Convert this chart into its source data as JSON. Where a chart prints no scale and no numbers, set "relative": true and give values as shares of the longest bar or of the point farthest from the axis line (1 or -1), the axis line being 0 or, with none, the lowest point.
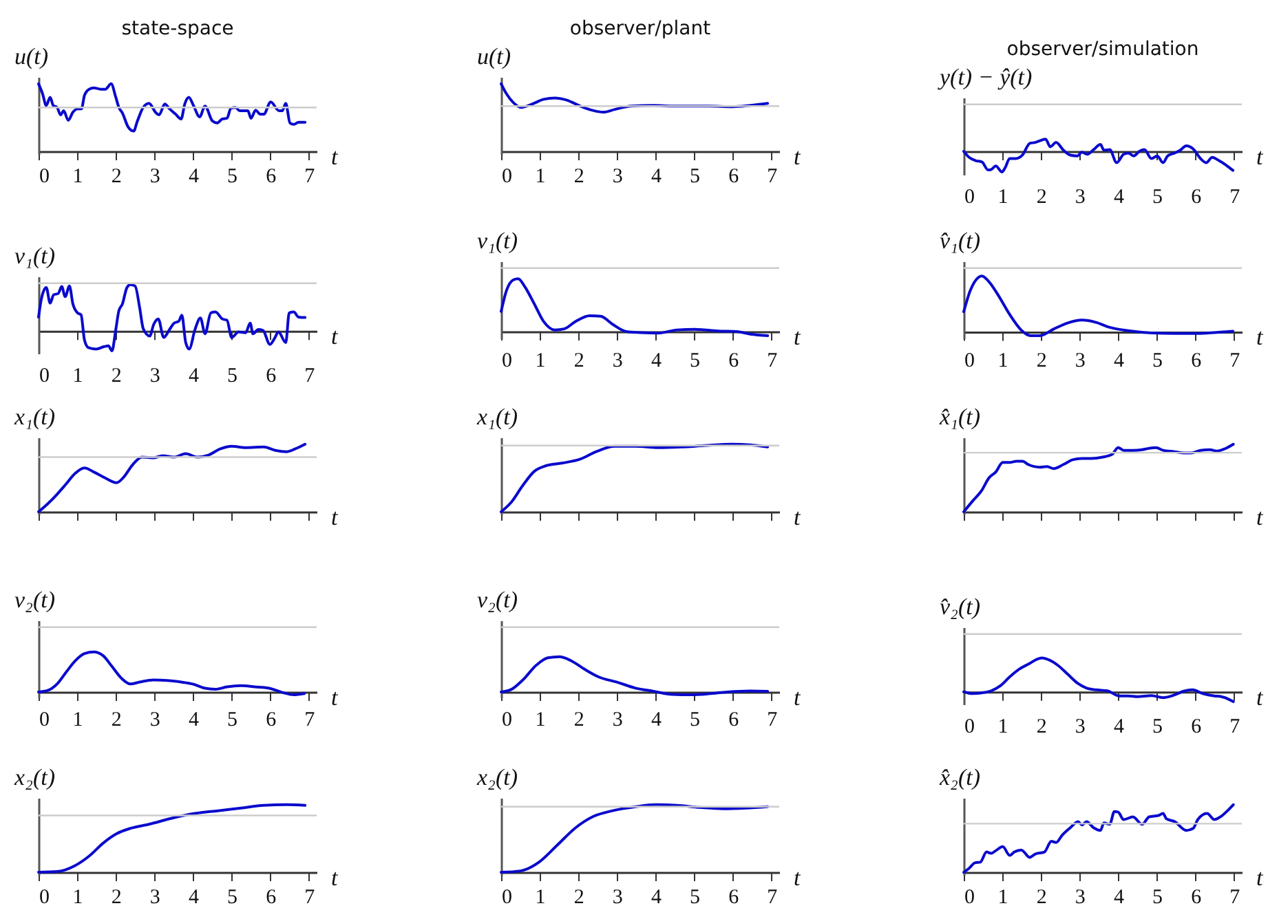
{
  "chart_data": [
    {
      "type": "line",
      "title": "state-space",
      "ylabel": "u(t)",
      "xlabel": "t",
      "relative": true,
      "tick_labels": "x",
      "color": "#0a0acd",
      "xlim": [
        0,
        7.2
      ],
      "xticks": [
        0,
        1,
        2,
        3,
        4,
        5,
        6,
        7
      ],
      "ref_lines": [
        {
          "axis": "y",
          "value": 0.65,
          "color": "#cccccc"
        }
      ],
      "x": [
        0,
        0.1,
        0.2,
        0.3,
        0.38,
        0.48,
        0.57,
        0.65,
        0.77,
        0.89,
        1.01,
        1.11,
        1.19,
        1.31,
        1.43,
        1.61,
        1.73,
        1.88,
        2.0,
        2.08,
        2.17,
        2.32,
        2.46,
        2.56,
        2.71,
        2.86,
        3.04,
        3.12,
        3.27,
        3.39,
        3.55,
        3.69,
        3.79,
        3.89,
        4.01,
        4.17,
        4.31,
        4.5,
        4.62,
        4.76,
        4.88,
        4.98,
        5.1,
        5.21,
        5.42,
        5.5,
        5.62,
        5.74,
        5.83,
        6.01,
        6.23,
        6.31,
        6.4,
        6.51,
        6.61,
        6.73,
        6.9
      ],
      "values": [
        1.0,
        0.86,
        0.68,
        0.8,
        0.68,
        0.65,
        0.54,
        0.6,
        0.46,
        0.58,
        0.63,
        0.63,
        0.83,
        0.92,
        0.94,
        0.92,
        0.92,
        1.0,
        0.8,
        0.65,
        0.57,
        0.36,
        0.3,
        0.45,
        0.65,
        0.71,
        0.57,
        0.54,
        0.7,
        0.63,
        0.55,
        0.48,
        0.71,
        0.8,
        0.68,
        0.51,
        0.67,
        0.45,
        0.42,
        0.48,
        0.49,
        0.64,
        0.65,
        0.6,
        0.6,
        0.49,
        0.61,
        0.55,
        0.55,
        0.73,
        0.6,
        0.6,
        0.71,
        0.42,
        0.4,
        0.43,
        0.43
      ]
    },
    {
      "type": "line",
      "title": "observer/plant",
      "ylabel": "u(t)",
      "xlabel": "t",
      "relative": true,
      "tick_labels": "x",
      "color": "#0a0acd",
      "xlim": [
        0,
        7.2
      ],
      "xticks": [
        0,
        1,
        2,
        3,
        4,
        5,
        6,
        7
      ],
      "ref_lines": [
        {
          "axis": "y",
          "value": 0.67,
          "color": "#cccccc"
        }
      ],
      "x": [
        0,
        0.14,
        0.32,
        0.52,
        0.8,
        1.1,
        1.39,
        1.69,
        2.05,
        2.35,
        2.64,
        2.94,
        3.36,
        3.95,
        4.43,
        4.9,
        5.38,
        5.98,
        6.45,
        6.9
      ],
      "values": [
        1.0,
        0.85,
        0.72,
        0.65,
        0.7,
        0.77,
        0.79,
        0.76,
        0.67,
        0.61,
        0.58,
        0.62,
        0.67,
        0.68,
        0.67,
        0.67,
        0.67,
        0.66,
        0.68,
        0.71
      ]
    },
    {
      "type": "line",
      "title": "observer/simulation",
      "ylabel": "y(t) − ŷ(t)",
      "xlabel": "t",
      "relative": true,
      "tick_labels": "x",
      "color": "#0a0acd",
      "xlim": [
        0,
        7.2
      ],
      "xticks": [
        0,
        1,
        2,
        3,
        4,
        5,
        6,
        7
      ],
      "ref_lines": [
        {
          "axis": "y",
          "value": 2.27,
          "color": "#cccccc"
        }
      ],
      "x": [
        0,
        0.14,
        0.31,
        0.47,
        0.63,
        0.71,
        0.83,
        0.99,
        1.07,
        1.19,
        1.35,
        1.52,
        1.71,
        1.85,
        2.0,
        2.12,
        2.24,
        2.39,
        2.58,
        2.76,
        2.94,
        3.06,
        3.2,
        3.36,
        3.54,
        3.63,
        3.78,
        3.96,
        4.14,
        4.26,
        4.4,
        4.56,
        4.68,
        4.86,
        5.01,
        5.16,
        5.28,
        5.46,
        5.61,
        5.76,
        5.94,
        6.13,
        6.28,
        6.43,
        6.61,
        6.81,
        6.97
      ],
      "values": [
        0,
        -0.29,
        -0.45,
        -0.51,
        -0.9,
        -0.88,
        -0.71,
        -1.0,
        -0.8,
        -0.35,
        -0.35,
        -0.18,
        0.39,
        0.43,
        0.53,
        0.59,
        0.22,
        0.43,
        0.06,
        -0.18,
        -0.22,
        -0.04,
        -0.14,
        0.08,
        0.33,
        0.06,
        0.08,
        -0.55,
        -0.14,
        -0.08,
        -0.22,
        0.02,
        0.08,
        -0.35,
        -0.22,
        -0.55,
        -0.22,
        -0.08,
        0.06,
        0.27,
        0.12,
        -0.35,
        -0.55,
        -0.29,
        -0.45,
        -0.69,
        -0.92
      ]
    },
    {
      "type": "line",
      "ylabel": "v₁(t)",
      "xlabel": "t",
      "relative": true,
      "tick_labels": "x",
      "color": "#0a0acd",
      "xlim": [
        0,
        7.2
      ],
      "xticks": [
        0,
        1,
        2,
        3,
        4,
        5,
        6,
        7
      ],
      "ref_lines": [
        {
          "axis": "y",
          "value": 1.03,
          "color": "#cccccc"
        }
      ],
      "x": [
        0,
        0.08,
        0.2,
        0.3,
        0.39,
        0.51,
        0.6,
        0.69,
        0.8,
        0.89,
        1.01,
        1.1,
        1.19,
        1.29,
        1.49,
        1.69,
        1.81,
        1.9,
        2.0,
        2.08,
        2.17,
        2.29,
        2.38,
        2.5,
        2.62,
        2.71,
        2.88,
        2.98,
        3.1,
        3.24,
        3.39,
        3.51,
        3.63,
        3.71,
        3.81,
        3.9,
        4.05,
        4.19,
        4.31,
        4.46,
        4.58,
        4.76,
        4.88,
        5.0,
        5.18,
        5.36,
        5.48,
        5.55,
        5.69,
        5.81,
        5.99,
        6.11,
        6.21,
        6.4,
        6.49,
        6.61,
        6.73,
        6.9
      ],
      "values": [
        0.3,
        0.72,
        0.94,
        0.6,
        0.78,
        0.81,
        0.96,
        0.74,
        0.97,
        0.58,
        0.39,
        0.35,
        -0.2,
        -0.36,
        -0.39,
        -0.34,
        -0.32,
        -0.43,
        0.03,
        0.44,
        0.58,
        0.94,
        1.0,
        0.97,
        0.49,
        0.05,
        -0.11,
        0.14,
        0.26,
        -0.14,
        0.03,
        0.17,
        0.21,
        0.34,
        -0.25,
        -0.39,
        0.03,
        0.28,
        -0.06,
        0.39,
        0.41,
        0.26,
        0.23,
        -0.14,
        -0.02,
        -0.04,
        0.17,
        -0.06,
        0.03,
        0.01,
        -0.29,
        -0.16,
        -0.02,
        -0.25,
        0.39,
        0.41,
        0.3,
        0.29
      ]
    },
    {
      "type": "line",
      "ylabel": "v₁(t)",
      "xlabel": "t",
      "relative": true,
      "tick_labels": "x",
      "color": "#0a0acd",
      "xlim": [
        0,
        7.2
      ],
      "xticks": [
        0,
        1,
        2,
        3,
        4,
        5,
        6,
        7
      ],
      "ref_lines": [
        {
          "axis": "y",
          "value": 1.2,
          "color": "#cccccc"
        }
      ],
      "x": [
        0,
        0.14,
        0.32,
        0.44,
        0.62,
        0.86,
        1.1,
        1.39,
        1.63,
        1.93,
        2.29,
        2.58,
        2.88,
        3.24,
        3.6,
        4.07,
        4.55,
        5.02,
        5.62,
        6.1,
        6.45,
        6.9
      ],
      "values": [
        0.38,
        0.78,
        0.98,
        1.0,
        0.84,
        0.52,
        0.19,
        0.03,
        0.05,
        0.19,
        0.3,
        0.29,
        0.14,
        0.0,
        -0.02,
        -0.03,
        0.03,
        0.04,
        0.01,
        0.0,
        -0.05,
        -0.08
      ]
    },
    {
      "type": "line",
      "ylabel": "v̂₁(t)",
      "xlabel": "t",
      "relative": true,
      "tick_labels": "x",
      "color": "#0a0acd",
      "xlim": [
        0,
        7.2
      ],
      "xticks": [
        0,
        1,
        2,
        3,
        4,
        5,
        6,
        7
      ],
      "ref_lines": [
        {
          "axis": "y",
          "value": 1.14,
          "color": "#cccccc"
        }
      ],
      "x": [
        0,
        0.17,
        0.39,
        0.47,
        0.65,
        0.89,
        1.19,
        1.49,
        1.73,
        1.97,
        2.33,
        2.7,
        3.06,
        3.42,
        3.78,
        4.26,
        4.86,
        5.46,
        6.06,
        6.55,
        6.97
      ],
      "values": [
        0.36,
        0.74,
        0.98,
        1.0,
        0.9,
        0.66,
        0.31,
        0.03,
        -0.07,
        -0.07,
        0.05,
        0.16,
        0.21,
        0.17,
        0.08,
        0.02,
        -0.02,
        -0.03,
        -0.03,
        -0.01,
        0.01
      ]
    },
    {
      "type": "line",
      "ylabel": "x₁(t)",
      "xlabel": "t",
      "relative": true,
      "tick_labels": false,
      "color": "#0a0acd",
      "xlim": [
        0,
        7.2
      ],
      "xticks": [
        0,
        1,
        2,
        3,
        4,
        5,
        6,
        7
      ],
      "ref_lines": [
        {
          "axis": "y",
          "value": 0.81,
          "color": "#cccccc"
        }
      ],
      "x": [
        0,
        0.24,
        0.48,
        0.71,
        0.95,
        1.19,
        1.43,
        1.73,
        2.02,
        2.2,
        2.44,
        2.68,
        2.98,
        3.21,
        3.51,
        3.81,
        4.11,
        4.4,
        4.7,
        5.0,
        5.36,
        5.83,
        6.13,
        6.43,
        6.64,
        6.9
      ],
      "values": [
        0,
        0.12,
        0.26,
        0.41,
        0.57,
        0.65,
        0.59,
        0.5,
        0.43,
        0.51,
        0.7,
        0.81,
        0.8,
        0.83,
        0.81,
        0.86,
        0.81,
        0.84,
        0.93,
        0.97,
        0.95,
        0.96,
        0.91,
        0.89,
        0.93,
        1.0
      ]
    },
    {
      "type": "line",
      "ylabel": "x₁(t)",
      "xlabel": "t",
      "relative": true,
      "tick_labels": false,
      "color": "#0a0acd",
      "xlim": [
        0,
        7.2
      ],
      "xticks": [
        0,
        1,
        2,
        3,
        4,
        5,
        6,
        7
      ],
      "ref_lines": [
        {
          "axis": "y",
          "value": 0.98,
          "color": "#cccccc"
        }
      ],
      "x": [
        0,
        0.26,
        0.56,
        0.86,
        1.15,
        1.57,
        2.05,
        2.46,
        2.94,
        3.48,
        4.07,
        4.67,
        5.26,
        5.98,
        6.45,
        6.9
      ],
      "values": [
        0,
        0.14,
        0.39,
        0.6,
        0.68,
        0.72,
        0.78,
        0.89,
        0.97,
        0.97,
        0.95,
        0.96,
        0.98,
        1.0,
        0.99,
        0.96
      ]
    },
    {
      "type": "line",
      "ylabel": "x̂₁(t)",
      "xlabel": "t",
      "relative": true,
      "tick_labels": false,
      "color": "#0a0acd",
      "xlim": [
        0,
        7.2
      ],
      "xticks": [
        0,
        1,
        2,
        3,
        4,
        5,
        6,
        7
      ],
      "ref_lines": [
        {
          "axis": "y",
          "value": 0.875,
          "color": "#cccccc"
        }
      ],
      "x": [
        0,
        0.23,
        0.47,
        0.65,
        0.83,
        1.01,
        1.19,
        1.37,
        1.52,
        1.67,
        1.97,
        2.15,
        2.33,
        2.58,
        2.82,
        3.06,
        3.3,
        3.6,
        3.84,
        4.0,
        4.14,
        4.38,
        4.62,
        4.8,
        4.98,
        5.16,
        5.46,
        5.7,
        5.88,
        6.13,
        6.37,
        6.55,
        6.79,
        6.98
      ],
      "values": [
        0,
        0.16,
        0.32,
        0.5,
        0.59,
        0.73,
        0.73,
        0.75,
        0.75,
        0.7,
        0.66,
        0.67,
        0.64,
        0.7,
        0.77,
        0.79,
        0.79,
        0.81,
        0.85,
        0.95,
        0.91,
        0.91,
        0.92,
        0.94,
        0.95,
        0.91,
        0.89,
        0.87,
        0.87,
        0.91,
        0.92,
        0.9,
        0.94,
        1.0
      ]
    },
    {
      "type": "line",
      "ylabel": "v₂(t)",
      "xlabel": "t",
      "relative": true,
      "tick_labels": "x",
      "color": "#0a0acd",
      "xlim": [
        0,
        7.2
      ],
      "xticks": [
        0,
        1,
        2,
        3,
        4,
        5,
        6,
        7
      ],
      "ref_lines": [
        {
          "axis": "y",
          "value": 1.62,
          "color": "#cccccc"
        }
      ],
      "x": [
        0,
        0.24,
        0.48,
        0.71,
        0.95,
        1.19,
        1.43,
        1.67,
        1.9,
        2.14,
        2.38,
        2.62,
        2.98,
        3.33,
        3.69,
        3.99,
        4.29,
        4.58,
        4.88,
        5.24,
        5.6,
        5.95,
        6.31,
        6.61,
        6.88
      ],
      "values": [
        0,
        0.04,
        0.2,
        0.49,
        0.78,
        0.96,
        1.0,
        0.91,
        0.64,
        0.35,
        0.2,
        0.25,
        0.3,
        0.29,
        0.25,
        0.2,
        0.1,
        0.07,
        0.13,
        0.16,
        0.13,
        0.1,
        -0.01,
        -0.07,
        -0.04
      ]
    },
    {
      "type": "line",
      "ylabel": "v₂(t)",
      "xlabel": "t",
      "relative": true,
      "tick_labels": "x",
      "color": "#0a0acd",
      "xlim": [
        0,
        7.2
      ],
      "xticks": [
        0,
        1,
        2,
        3,
        4,
        5,
        6,
        7
      ],
      "ref_lines": [
        {
          "axis": "y",
          "value": 1.84,
          "color": "#cccccc"
        }
      ],
      "x": [
        0,
        0.26,
        0.56,
        0.92,
        1.21,
        1.51,
        1.81,
        2.17,
        2.52,
        3.0,
        3.48,
        3.95,
        4.43,
        4.9,
        5.38,
        5.86,
        6.45,
        6.9
      ],
      "values": [
        0,
        0.07,
        0.34,
        0.77,
        0.97,
        1.0,
        0.89,
        0.64,
        0.43,
        0.28,
        0.11,
        0.02,
        -0.07,
        -0.08,
        -0.05,
        0.0,
        0.03,
        0.02
      ]
    },
    {
      "type": "line",
      "ylabel": "v̂₂(t)",
      "xlabel": "t",
      "relative": true,
      "tick_labels": "x",
      "color": "#0a0acd",
      "xlim": [
        0,
        7.2
      ],
      "xticks": [
        0,
        1,
        2,
        3,
        4,
        5,
        6,
        7
      ],
      "ref_lines": [
        {
          "axis": "y",
          "value": 1.7,
          "color": "#cccccc"
        }
      ],
      "x": [
        0,
        0.23,
        0.47,
        0.71,
        0.95,
        1.19,
        1.44,
        1.68,
        1.92,
        2.03,
        2.21,
        2.45,
        2.69,
        2.94,
        3.18,
        3.42,
        3.72,
        4.02,
        4.26,
        4.5,
        4.86,
        5.16,
        5.46,
        5.7,
        5.92,
        6.19,
        6.49,
        6.67,
        6.98
      ],
      "values": [
        0,
        -0.05,
        -0.03,
        0.03,
        0.18,
        0.44,
        0.67,
        0.82,
        0.97,
        1.0,
        0.94,
        0.77,
        0.52,
        0.26,
        0.11,
        0.06,
        0.03,
        -0.12,
        -0.12,
        -0.14,
        -0.11,
        -0.17,
        -0.09,
        0.02,
        0.06,
        -0.05,
        -0.12,
        -0.14,
        -0.29
      ]
    },
    {
      "type": "line",
      "ylabel": "x₂(t)",
      "xlabel": "t",
      "relative": true,
      "tick_labels": "x",
      "color": "#0a0acd",
      "xlim": [
        0,
        7.2
      ],
      "xticks": [
        0,
        1,
        2,
        3,
        4,
        5,
        6,
        7
      ],
      "ref_lines": [
        {
          "axis": "y",
          "value": 0.84,
          "color": "#cccccc"
        }
      ],
      "x": [
        0,
        0.48,
        0.95,
        1.31,
        1.67,
        2.02,
        2.38,
        2.86,
        3.45,
        4.05,
        4.64,
        5.24,
        5.83,
        6.43,
        6.9
      ],
      "values": [
        0,
        0.01,
        0.1,
        0.24,
        0.43,
        0.57,
        0.65,
        0.71,
        0.8,
        0.87,
        0.91,
        0.95,
        0.99,
        1.0,
        0.99
      ]
    },
    {
      "type": "line",
      "ylabel": "x₂(t)",
      "xlabel": "t",
      "relative": true,
      "tick_labels": "x",
      "color": "#0a0acd",
      "xlim": [
        0,
        7.2
      ],
      "xticks": [
        0,
        1,
        2,
        3,
        4,
        5,
        6,
        7
      ],
      "ref_lines": [
        {
          "axis": "y",
          "value": 0.97,
          "color": "#cccccc"
        }
      ],
      "x": [
        0,
        0.5,
        0.98,
        1.45,
        1.93,
        2.4,
        2.88,
        3.48,
        4.01,
        4.55,
        5.14,
        5.74,
        6.33,
        6.9
      ],
      "values": [
        0,
        0.02,
        0.15,
        0.4,
        0.66,
        0.83,
        0.91,
        0.97,
        1.0,
        0.99,
        0.96,
        0.94,
        0.95,
        0.97
      ]
    },
    {
      "type": "line",
      "ylabel": "x̂₂(t)",
      "xlabel": "t",
      "relative": true,
      "tick_labels": "x",
      "color": "#0a0acd",
      "xlim": [
        0,
        7.2
      ],
      "xticks": [
        0,
        1,
        2,
        3,
        4,
        5,
        6,
        7
      ],
      "ref_lines": [
        {
          "axis": "y",
          "value": 0.72,
          "color": "#cccccc"
        }
      ],
      "x": [
        0,
        0.14,
        0.29,
        0.43,
        0.59,
        0.71,
        0.83,
        1.01,
        1.19,
        1.31,
        1.49,
        1.71,
        1.85,
        2.09,
        2.27,
        2.39,
        2.55,
        2.76,
        2.96,
        3.06,
        3.18,
        3.36,
        3.54,
        3.63,
        3.78,
        3.9,
        4.0,
        4.14,
        4.38,
        4.62,
        4.8,
        5.04,
        5.16,
        5.25,
        5.46,
        5.76,
        5.94,
        6.06,
        6.3,
        6.49,
        6.67,
        6.81,
        6.98
      ],
      "values": [
        0,
        0.06,
        0.14,
        0.15,
        0.3,
        0.28,
        0.32,
        0.38,
        0.25,
        0.3,
        0.33,
        0.22,
        0.27,
        0.3,
        0.46,
        0.44,
        0.55,
        0.66,
        0.75,
        0.7,
        0.75,
        0.66,
        0.62,
        0.73,
        0.71,
        0.9,
        0.89,
        0.78,
        0.82,
        0.71,
        0.82,
        0.84,
        0.87,
        0.79,
        0.75,
        0.62,
        0.65,
        0.78,
        0.87,
        0.78,
        0.83,
        0.9,
        1.0
      ]
    }
  ]
}
